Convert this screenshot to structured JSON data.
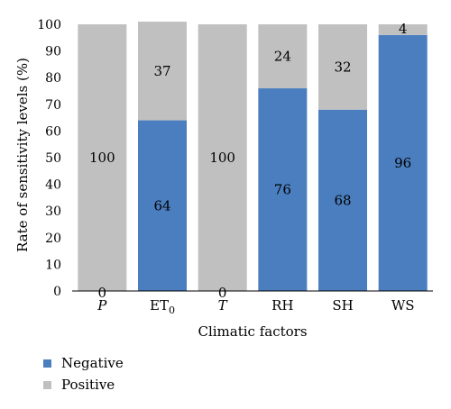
{
  "chart_data": {
    "type": "bar",
    "stacked": true,
    "percent_stacked": true,
    "categories": [
      {
        "label": "P",
        "italic": true,
        "subscript": ""
      },
      {
        "label": "ET",
        "italic": false,
        "subscript": "0"
      },
      {
        "label": "T",
        "italic": true,
        "subscript": ""
      },
      {
        "label": "RH",
        "italic": false,
        "subscript": ""
      },
      {
        "label": "SH",
        "italic": false,
        "subscript": ""
      },
      {
        "label": "WS",
        "italic": false,
        "subscript": ""
      }
    ],
    "series": [
      {
        "name": "Negative",
        "color": "#4a7ebf",
        "values": [
          0,
          64,
          0,
          76,
          68,
          96
        ]
      },
      {
        "name": "Positive",
        "color": "#c0c0c0",
        "values": [
          100,
          37,
          100,
          24,
          32,
          4
        ]
      }
    ],
    "data_labels": {
      "Negative": [
        "0",
        "64",
        "0",
        "76",
        "68",
        "96"
      ],
      "Positive": [
        "100",
        "37",
        "100",
        "24",
        "32",
        "4"
      ]
    },
    "title": "",
    "xlabel": "Climatic factors",
    "ylabel": "Rate of sensitivity levels (%)",
    "ylim": [
      0,
      100
    ],
    "yticks": [
      0,
      10,
      20,
      30,
      40,
      50,
      60,
      70,
      80,
      90,
      100
    ],
    "grid": false,
    "legend_position": "bottom-left"
  }
}
